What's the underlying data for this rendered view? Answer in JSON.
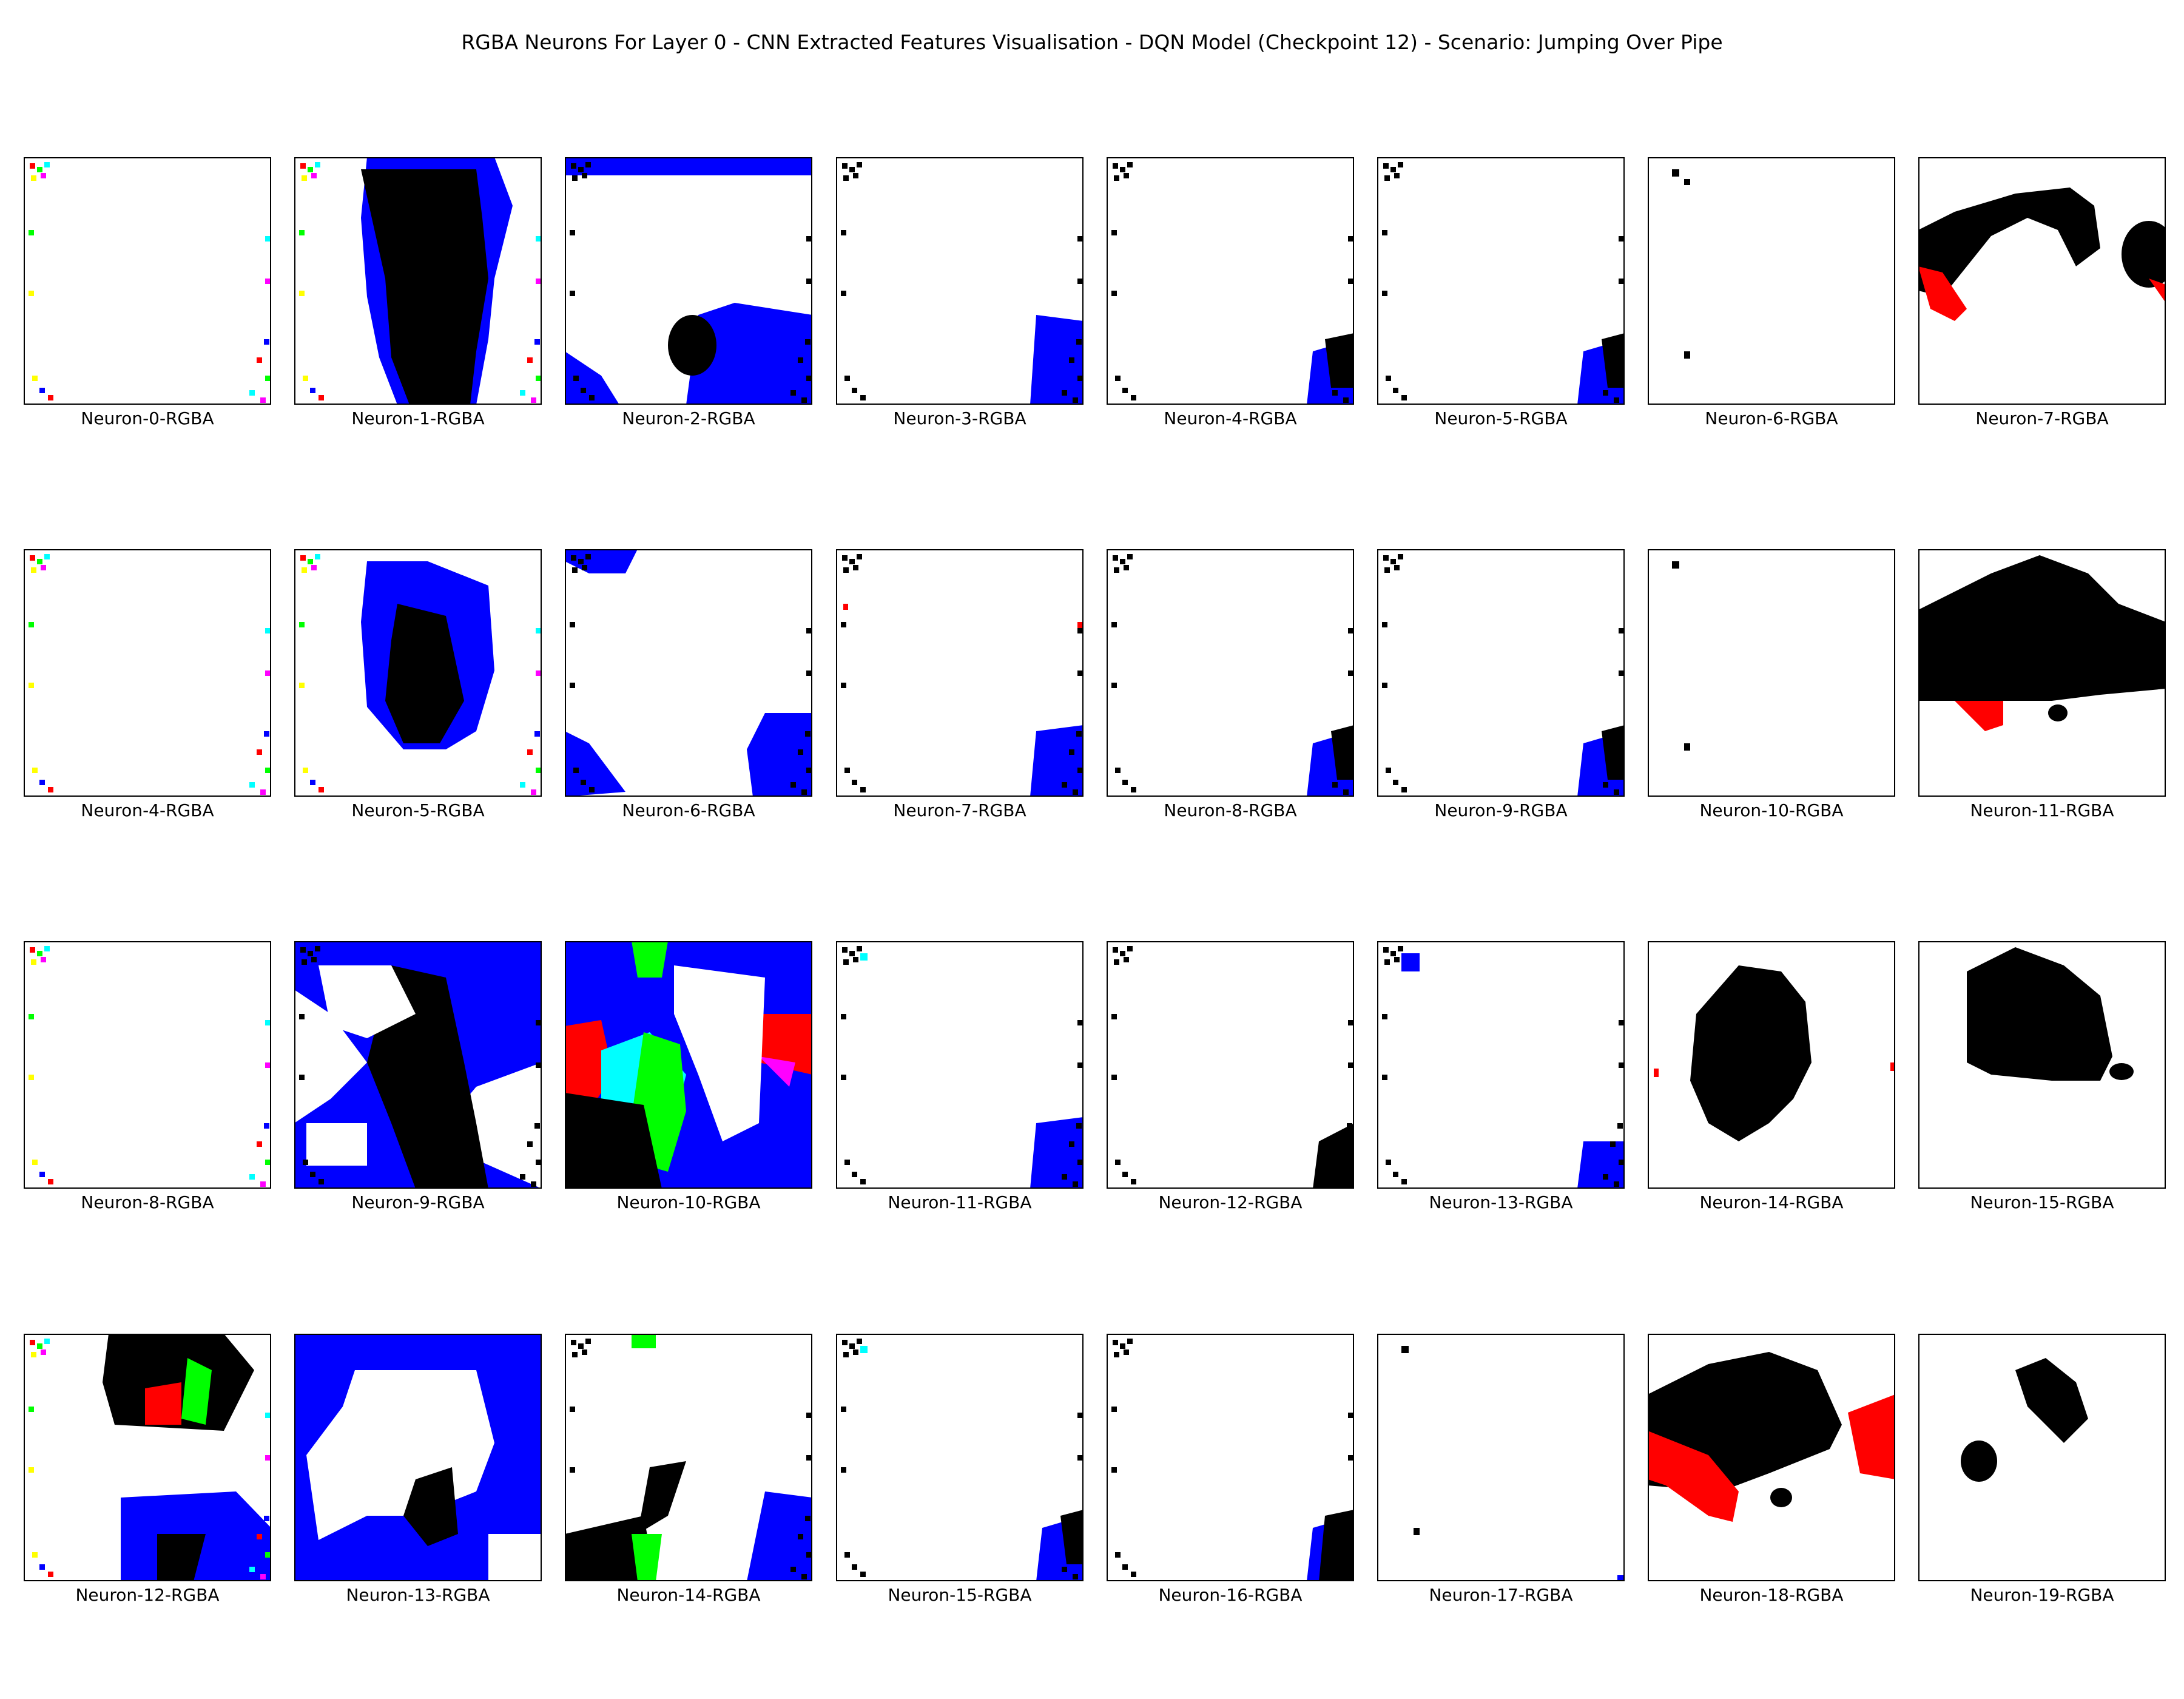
{
  "chart_data": {
    "type": "heatmap",
    "title": "RGBA Neurons For Layer 0 - CNN Extracted Features Visualisation - DQN Model (Checkpoint 12) - Scenario: Jumping Over Pipe",
    "grid": false,
    "colors": {
      "black": "#000000",
      "blue": "#0000ff",
      "red": "#ff0000",
      "green": "#00ff00",
      "cyan": "#00ffff",
      "magenta": "#ff00ff",
      "yellow": "#ffff00",
      "background": "#ffffff"
    },
    "panels": [
      {
        "label": "Neuron-0-RGBA",
        "dominant_colors": [
          "white",
          "noise-corners"
        ]
      },
      {
        "label": "Neuron-1-RGBA",
        "dominant_colors": [
          "black",
          "blue"
        ]
      },
      {
        "label": "Neuron-2-RGBA",
        "dominant_colors": [
          "blue",
          "black"
        ]
      },
      {
        "label": "Neuron-3-RGBA",
        "dominant_colors": [
          "white",
          "blue",
          "black"
        ]
      },
      {
        "label": "Neuron-4-RGBA",
        "dominant_colors": [
          "white",
          "blue",
          "black"
        ]
      },
      {
        "label": "Neuron-5-RGBA",
        "dominant_colors": [
          "white",
          "blue",
          "black"
        ]
      },
      {
        "label": "Neuron-6-RGBA",
        "dominant_colors": [
          "white",
          "black"
        ]
      },
      {
        "label": "Neuron-7-RGBA",
        "dominant_colors": [
          "black",
          "red"
        ]
      },
      {
        "label": "Neuron-4-RGBA",
        "dominant_colors": [
          "white",
          "noise-corners"
        ]
      },
      {
        "label": "Neuron-5-RGBA",
        "dominant_colors": [
          "blue",
          "black"
        ]
      },
      {
        "label": "Neuron-6-RGBA",
        "dominant_colors": [
          "blue",
          "black"
        ]
      },
      {
        "label": "Neuron-7-RGBA",
        "dominant_colors": [
          "white",
          "blue",
          "black",
          "red"
        ]
      },
      {
        "label": "Neuron-8-RGBA",
        "dominant_colors": [
          "white",
          "blue",
          "black"
        ]
      },
      {
        "label": "Neuron-9-RGBA",
        "dominant_colors": [
          "white",
          "blue",
          "black"
        ]
      },
      {
        "label": "Neuron-10-RGBA",
        "dominant_colors": [
          "white",
          "black"
        ]
      },
      {
        "label": "Neuron-11-RGBA",
        "dominant_colors": [
          "black",
          "red"
        ]
      },
      {
        "label": "Neuron-8-RGBA",
        "dominant_colors": [
          "white",
          "noise-corners"
        ]
      },
      {
        "label": "Neuron-9-RGBA",
        "dominant_colors": [
          "blue",
          "black"
        ]
      },
      {
        "label": "Neuron-10-RGBA",
        "dominant_colors": [
          "blue",
          "black",
          "red",
          "green",
          "cyan",
          "magenta"
        ]
      },
      {
        "label": "Neuron-11-RGBA",
        "dominant_colors": [
          "white",
          "blue",
          "black"
        ]
      },
      {
        "label": "Neuron-12-RGBA",
        "dominant_colors": [
          "white",
          "black"
        ]
      },
      {
        "label": "Neuron-13-RGBA",
        "dominant_colors": [
          "white",
          "blue"
        ]
      },
      {
        "label": "Neuron-14-RGBA",
        "dominant_colors": [
          "black",
          "red"
        ]
      },
      {
        "label": "Neuron-15-RGBA",
        "dominant_colors": [
          "black"
        ]
      },
      {
        "label": "Neuron-12-RGBA",
        "dominant_colors": [
          "blue",
          "black",
          "red",
          "green"
        ]
      },
      {
        "label": "Neuron-13-RGBA",
        "dominant_colors": [
          "blue",
          "black"
        ]
      },
      {
        "label": "Neuron-14-RGBA",
        "dominant_colors": [
          "white",
          "blue",
          "black",
          "green"
        ]
      },
      {
        "label": "Neuron-15-RGBA",
        "dominant_colors": [
          "white",
          "blue",
          "black"
        ]
      },
      {
        "label": "Neuron-16-RGBA",
        "dominant_colors": [
          "white",
          "blue",
          "black"
        ]
      },
      {
        "label": "Neuron-17-RGBA",
        "dominant_colors": [
          "white",
          "black"
        ]
      },
      {
        "label": "Neuron-18-RGBA",
        "dominant_colors": [
          "black",
          "red"
        ]
      },
      {
        "label": "Neuron-19-RGBA",
        "dominant_colors": [
          "white",
          "black"
        ]
      }
    ]
  }
}
